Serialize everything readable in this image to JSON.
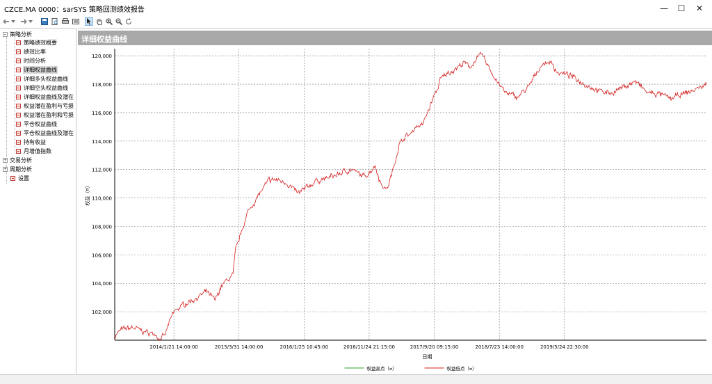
{
  "window": {
    "title": "CZCE.MA 0000：sarSYS 策略回测绩效报告",
    "min_label": "—",
    "max_label": "☐",
    "close_label": "✕"
  },
  "toolbar": {
    "icons": [
      "back-icon",
      "dropdown-icon",
      "forward-icon",
      "dropdown-icon",
      "save-icon",
      "print-preview-icon",
      "print-icon",
      "page-setup-icon",
      "pointer-icon",
      "pan-hand-icon",
      "zoom-in-icon",
      "zoom-out-icon",
      "refresh-icon"
    ]
  },
  "sidebar": {
    "groups": [
      {
        "label": "策略分析",
        "expanded": true,
        "items": [
          {
            "label": "策略绩效概要"
          },
          {
            "label": "绩效比率"
          },
          {
            "label": "时间分析"
          },
          {
            "label": "详细权益曲线",
            "selected": true
          },
          {
            "label": "详细多头权益曲线"
          },
          {
            "label": "详细空头权益曲线"
          },
          {
            "label": "详细权益曲线及潜在"
          },
          {
            "label": "权益潜在盈利与亏损"
          },
          {
            "label": "权益潜在盈利和亏损"
          },
          {
            "label": "平仓权益曲线"
          },
          {
            "label": "平仓权益曲线及潜在"
          },
          {
            "label": "持有收益"
          },
          {
            "label": "月增值指数"
          }
        ]
      },
      {
        "label": "交易分析",
        "expanded": false
      },
      {
        "label": "周期分析",
        "expanded": false
      }
    ],
    "settings_label": "设置"
  },
  "panel": {
    "title": "详细权益曲线"
  },
  "chart_data": {
    "type": "line",
    "ylabel": "权益（¤）",
    "xlabel": "日期",
    "ylim": [
      100000,
      120500
    ],
    "yticks": [
      "102,000",
      "104,000",
      "106,000",
      "108,000",
      "110,000",
      "112,000",
      "114,000",
      "116,000",
      "118,000",
      "120,000"
    ],
    "ytick_values": [
      102000,
      104000,
      106000,
      108000,
      110000,
      112000,
      114000,
      116000,
      118000,
      120000
    ],
    "xticks": [
      "2014/1/21 14:00:00",
      "2015/3/31 14:00:00",
      "2016/1/25 10:45:00",
      "2016/11/24 21:15:00",
      "2017/9/20 09:15:00",
      "2018/7/23 14:00:00",
      "2019/5/24 22:30:00"
    ],
    "xtick_index": [
      0.1,
      0.21,
      0.32,
      0.43,
      0.54,
      0.65,
      0.76
    ],
    "grid": true,
    "legend_position": "bottom",
    "series": [
      {
        "name": "权益高点（¤）",
        "color": "#2e9e2e"
      },
      {
        "name": "权益低点（¤）",
        "color": "#d42020",
        "anchors_t": [
          0.0,
          0.01,
          0.03,
          0.05,
          0.07,
          0.075,
          0.085,
          0.09,
          0.1,
          0.12,
          0.14,
          0.155,
          0.17,
          0.18,
          0.19,
          0.2,
          0.205,
          0.21,
          0.215,
          0.225,
          0.24,
          0.26,
          0.27,
          0.29,
          0.31,
          0.33,
          0.34,
          0.36,
          0.38,
          0.39,
          0.4,
          0.42,
          0.43,
          0.44,
          0.45,
          0.46,
          0.47,
          0.48,
          0.49,
          0.5,
          0.51,
          0.52,
          0.54,
          0.545,
          0.55,
          0.56,
          0.58,
          0.59,
          0.6,
          0.61,
          0.62,
          0.63,
          0.64,
          0.66,
          0.68,
          0.7,
          0.71,
          0.72,
          0.735,
          0.75,
          0.77,
          0.8,
          0.82,
          0.84,
          0.86,
          0.88,
          0.9,
          0.92,
          0.94,
          0.96,
          0.98,
          1.0
        ],
        "anchors_v": [
          100300,
          100700,
          100900,
          100600,
          100400,
          100100,
          100300,
          101000,
          102000,
          102600,
          103000,
          103400,
          102800,
          103800,
          104200,
          104600,
          106500,
          107000,
          107800,
          109000,
          110000,
          111200,
          111300,
          111100,
          110300,
          110900,
          111200,
          111400,
          111700,
          111900,
          112000,
          111500,
          111800,
          112300,
          111000,
          110600,
          111900,
          113700,
          114300,
          114500,
          115100,
          115100,
          117200,
          117600,
          118300,
          118700,
          119200,
          119500,
          119200,
          119700,
          120100,
          119400,
          118600,
          117400,
          117100,
          117800,
          118600,
          119300,
          119600,
          118800,
          118600,
          117900,
          117500,
          117400,
          117800,
          118200,
          117400,
          117300,
          117000,
          117300,
          117600,
          118000
        ]
      }
    ]
  },
  "colors": {
    "accent_header": "#a8a8a8",
    "line_low": "#d42020",
    "line_high": "#2e9e2e"
  }
}
